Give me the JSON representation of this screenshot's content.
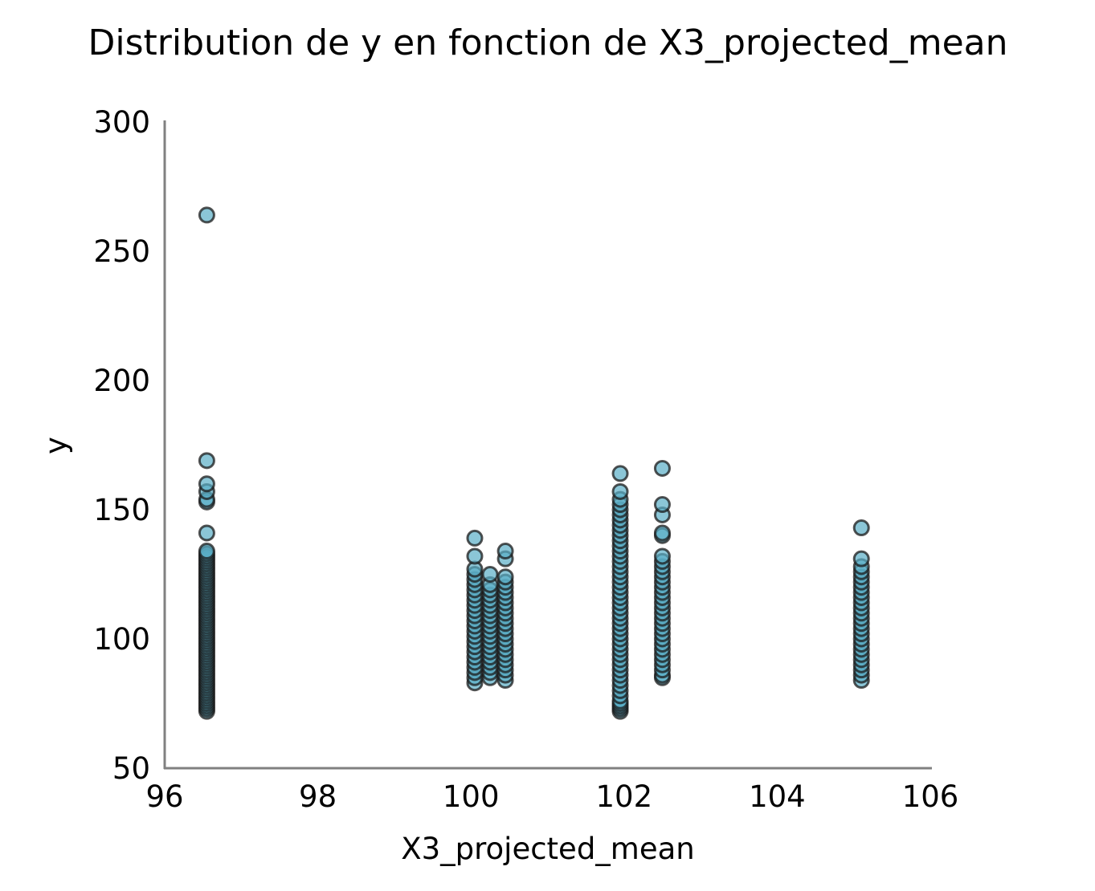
{
  "chart_data": {
    "type": "scatter",
    "title": "Distribution de y en fonction de X3_projected_mean",
    "xlabel": "X3_projected_mean",
    "ylabel": "y",
    "xlim": [
      96,
      106
    ],
    "ylim": [
      50,
      300
    ],
    "xticks": [
      96,
      98,
      100,
      102,
      104,
      106
    ],
    "yticks": [
      50,
      100,
      150,
      200,
      250,
      300
    ],
    "grid": false,
    "legend": "none",
    "point_fill": "#5aaec6",
    "point_stroke": "#1a1a1a",
    "point_alpha": 0.7,
    "series": [
      {
        "clusters": [
          {
            "x": 96.55,
            "y": [
              72,
              73,
              74,
              75,
              76,
              77,
              78,
              79,
              80,
              81,
              82,
              83,
              84,
              85,
              86,
              87,
              88,
              89,
              90,
              91,
              92,
              93,
              94,
              95,
              96,
              97,
              98,
              99,
              100,
              101,
              102,
              103,
              104,
              105,
              106,
              107,
              108,
              109,
              110,
              111,
              112,
              113,
              114,
              115,
              116,
              117,
              118,
              119,
              120,
              121,
              122,
              123,
              124,
              125,
              126,
              127,
              128,
              129,
              130,
              131,
              132,
              133,
              134,
              141,
              153,
              154,
              157,
              160,
              169,
              264
            ]
          },
          {
            "x": 100.05,
            "y": [
              83,
              85,
              87,
              89,
              91,
              93,
              95,
              97,
              99,
              101,
              103,
              105,
              107,
              109,
              111,
              113,
              115,
              117,
              119,
              121,
              123,
              125,
              127,
              132,
              139
            ]
          },
          {
            "x": 100.25,
            "y": [
              85,
              87,
              89,
              91,
              93,
              95,
              97,
              99,
              101,
              103,
              105,
              107,
              109,
              111,
              113,
              115,
              117,
              119,
              121,
              125
            ]
          },
          {
            "x": 100.45,
            "y": [
              84,
              86,
              88,
              90,
              92,
              94,
              96,
              98,
              100,
              102,
              104,
              106,
              108,
              110,
              112,
              114,
              116,
              118,
              120,
              122,
              124,
              131,
              134
            ]
          },
          {
            "x": 101.95,
            "y": [
              72,
              73,
              74,
              75,
              76,
              78,
              80,
              82,
              84,
              86,
              88,
              90,
              92,
              94,
              96,
              98,
              100,
              102,
              104,
              106,
              108,
              110,
              112,
              114,
              116,
              118,
              120,
              122,
              124,
              126,
              128,
              130,
              132,
              134,
              136,
              138,
              140,
              142,
              144,
              146,
              148,
              150,
              152,
              154,
              157,
              164
            ]
          },
          {
            "x": 102.5,
            "y": [
              85,
              86,
              88,
              90,
              92,
              94,
              96,
              98,
              100,
              102,
              104,
              106,
              108,
              110,
              112,
              114,
              116,
              118,
              120,
              122,
              124,
              126,
              128,
              130,
              132,
              140,
              141,
              148,
              152,
              166
            ]
          },
          {
            "x": 105.1,
            "y": [
              84,
              86,
              88,
              90,
              92,
              94,
              96,
              98,
              100,
              102,
              104,
              106,
              108,
              110,
              112,
              114,
              116,
              118,
              120,
              122,
              124,
              126,
              128,
              131,
              143
            ]
          }
        ]
      }
    ]
  }
}
